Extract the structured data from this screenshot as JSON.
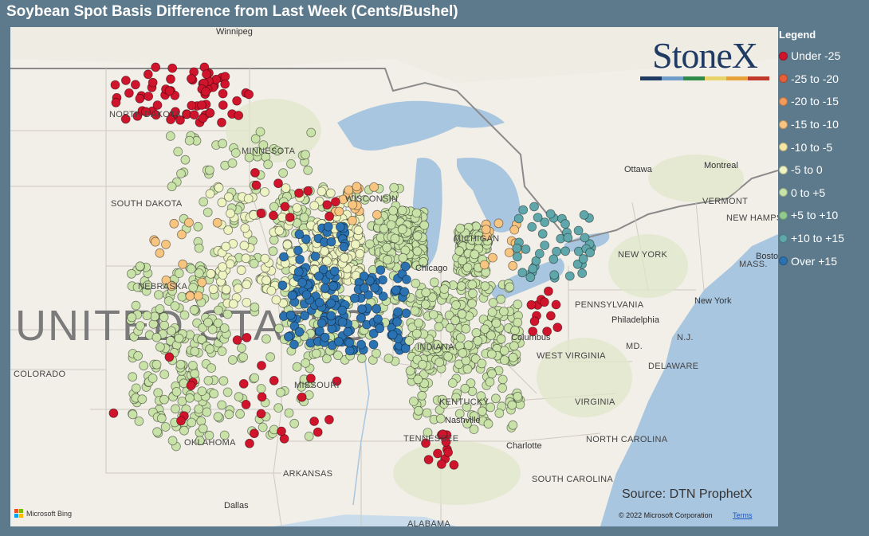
{
  "title": "Soybean Spot Basis Difference from Last Week (Cents/Bushel)",
  "legend": {
    "title": "Legend",
    "items": [
      {
        "label": "Under -25",
        "color": "#d0142c"
      },
      {
        "label": "-25 to -20",
        "color": "#e8603a"
      },
      {
        "label": "-20 to -15",
        "color": "#f29a5a"
      },
      {
        "label": "-15 to -10",
        "color": "#f8c581"
      },
      {
        "label": "-10 to -5",
        "color": "#f6e6a4"
      },
      {
        "label": "-5 to 0",
        "color": "#eef3c2"
      },
      {
        "label": "0 to +5",
        "color": "#c8e2a8"
      },
      {
        "label": "+5 to +10",
        "color": "#92c98e"
      },
      {
        "label": "+10 to +15",
        "color": "#5fa7aa"
      },
      {
        "label": "Over +15",
        "color": "#2a72b2"
      }
    ]
  },
  "logo": {
    "text": "StoneX",
    "bar_colors": [
      "#1f3b64",
      "#6f9cc8",
      "#2e8b4a",
      "#e8d26a",
      "#e8a23a",
      "#c0392b"
    ]
  },
  "source": "Source: DTN ProphetX",
  "copyright": "© 2022 Microsoft Corporation",
  "terms": "Terms",
  "bing": "Microsoft Bing",
  "map_labels": {
    "country": "UNITED STATES",
    "cities": [
      "Winnipeg",
      "Ottawa",
      "Montreal",
      "Chicago",
      "Columbus",
      "Nashville",
      "Charlotte",
      "Philadelphia",
      "New York",
      "Boston",
      "Dallas"
    ],
    "states": [
      "NORTH DAKOTA",
      "MINNESOTA",
      "SOUTH DAKOTA",
      "NEBRASKA",
      "WISCONSIN",
      "MICHIGAN",
      "COLORADO",
      "MISSOURI",
      "INDIANA",
      "KENTUCKY",
      "TENNESSEE",
      "ARKANSAS",
      "OKLAHOMA",
      "WEST VIRGINIA",
      "VIRGINIA",
      "NORTH CAROLINA",
      "SOUTH CAROLINA",
      "PENNSYLVANIA",
      "NEW YORK",
      "VERMONT",
      "NEW HAMPSHIRE",
      "MASS.",
      "MD.",
      "N.J.",
      "DELAWARE",
      "ALABAMA"
    ]
  },
  "point_clusters": [
    {
      "color_index": 0,
      "count": 70,
      "region": "North Dakota"
    },
    {
      "color_index": 6,
      "count": 900,
      "region": "Minnesota to Nebraska and Kansas"
    },
    {
      "color_index": 5,
      "count": 300,
      "region": "Iowa and Minnesota"
    },
    {
      "color_index": 9,
      "count": 160,
      "region": "Illinois"
    },
    {
      "color_index": 6,
      "count": 250,
      "region": "Indiana and Ohio"
    },
    {
      "color_index": 3,
      "count": 45,
      "region": "Michigan and Wisconsin"
    },
    {
      "color_index": 8,
      "count": 45,
      "region": "Ontario"
    },
    {
      "color_index": 0,
      "count": 60,
      "region": "scattered"
    }
  ]
}
